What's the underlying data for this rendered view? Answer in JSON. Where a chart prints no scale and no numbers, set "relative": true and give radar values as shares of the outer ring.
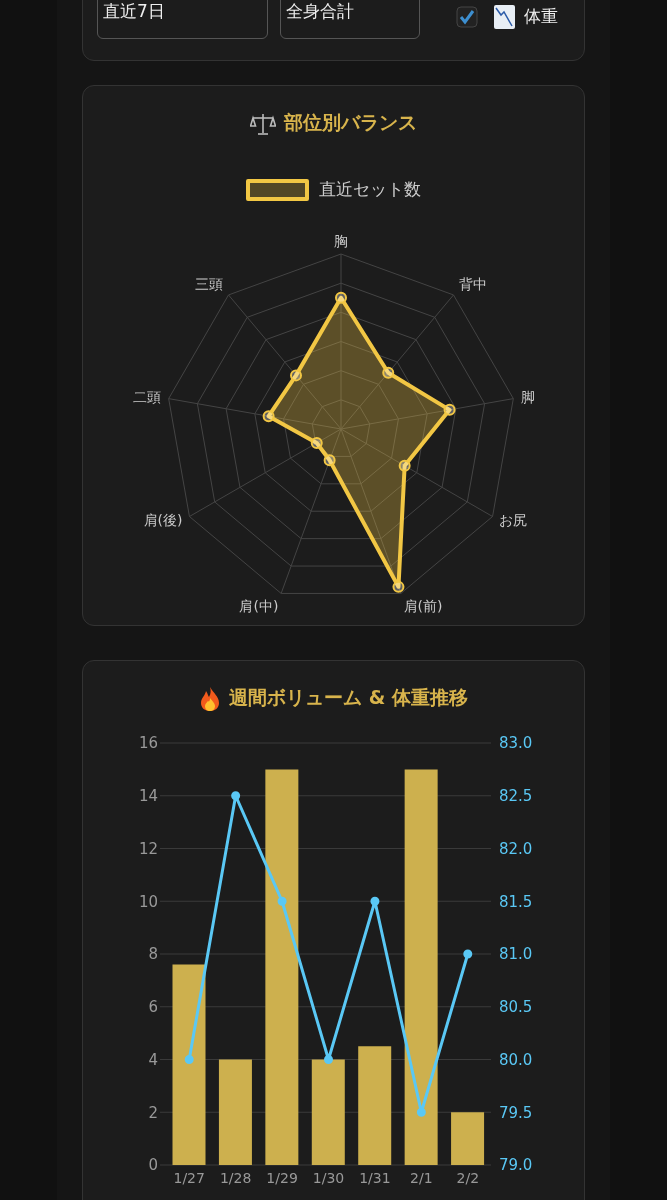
{
  "chart_data": [
    {
      "type": "other",
      "annotations": [
        "直近7日",
        "全身合計",
        "体重"
      ]
    },
    {
      "type": "radar",
      "title": "部位別バランス",
      "categories": [
        "胸",
        "背中",
        "脚",
        "お尻",
        "肩(前)",
        "肩(中)",
        "肩(後)",
        "二頭",
        "三頭"
      ],
      "relative": true,
      "legend": "top",
      "marker": "circle",
      "grid": true,
      "series": [
        {
          "name": "直近セット数",
          "color": "#f2c744",
          "values": [
            0.75,
            0.42,
            0.63,
            0.42,
            0.96,
            0.19,
            0.16,
            0.42,
            0.4
          ]
        }
      ]
    },
    {
      "type": "bar",
      "title": "週間ボリューム & 体重推移",
      "categories": [
        "1/27",
        "1/28",
        "1/29",
        "1/30",
        "1/31",
        "2/1",
        "2/2"
      ],
      "ylim": [
        0,
        16
      ],
      "yticks": [
        0,
        2,
        4,
        6,
        8,
        10,
        12,
        14,
        16
      ],
      "y2lim": [
        79,
        83
      ],
      "y2ticks": [
        {
          "value": 79,
          "label": "79.0"
        },
        79.5,
        {
          "value": 80,
          "label": "80.0"
        },
        80.5,
        {
          "value": 81,
          "label": "81.0"
        },
        81.5,
        {
          "value": 82,
          "label": "82.0"
        },
        82.5,
        {
          "value": 83,
          "label": "83.0"
        }
      ],
      "grid": "y",
      "marker": "circle",
      "series": [
        {
          "type": "bar",
          "color": "#cdb04e",
          "values": [
            7.6,
            4,
            15,
            4,
            4.5,
            15,
            2
          ]
        },
        {
          "type": "line",
          "axis": "y2",
          "color": "#5ac8f5",
          "values": [
            80,
            82.5,
            81.5,
            80,
            81.5,
            79.5,
            81
          ]
        }
      ]
    }
  ]
}
